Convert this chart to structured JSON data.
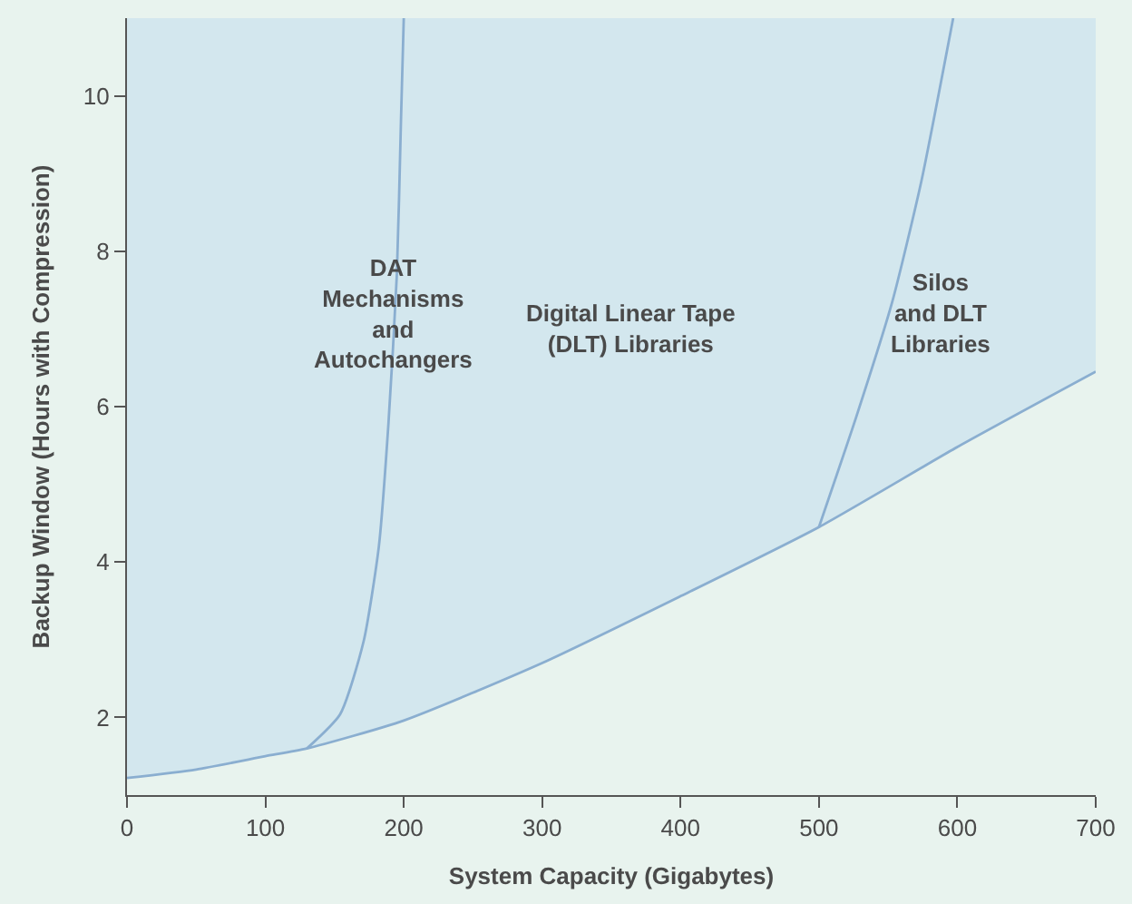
{
  "chart_data": {
    "type": "line",
    "xlabel": "System Capacity (Gigabytes)",
    "ylabel": "Backup Window (Hours with Compression)",
    "annotations": [
      "DAT\nMechanisms\nand\nAutochangers",
      "Digital Linear Tape\n(DLT) Libraries",
      "Silos\nand DLT\nLibraries"
    ],
    "series": [
      {
        "type": "area",
        "color": "#8aaed0",
        "x": [
          0,
          50,
          100,
          130,
          200,
          300,
          400,
          500,
          600,
          700
        ],
        "values": [
          1.22,
          1.33,
          1.5,
          1.6,
          1.96,
          2.7,
          3.56,
          4.45,
          5.48,
          6.45
        ]
      },
      {
        "color": "#8aaed0",
        "x": [
          130,
          154,
          171,
          182,
          189,
          195,
          198,
          200
        ],
        "values": [
          1.6,
          2.04,
          2.98,
          4.2,
          5.8,
          7.7,
          9.7,
          11
        ]
      },
      {
        "color": "#8aaed0",
        "x": [
          500,
          527,
          553,
          574,
          597
        ],
        "values": [
          4.45,
          5.87,
          7.35,
          8.9,
          11
        ]
      }
    ],
    "xlim": [
      0,
      700
    ],
    "xticks": [
      0,
      100,
      200,
      300,
      400,
      500,
      600,
      700
    ],
    "ylim": [
      1,
      11
    ],
    "yticks": [
      2,
      4,
      6,
      8,
      10
    ],
    "grid": false,
    "line_style": "solid"
  }
}
